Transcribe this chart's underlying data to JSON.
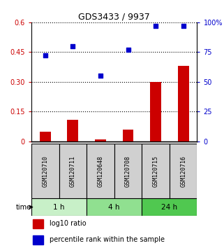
{
  "title": "GDS3433 / 9937",
  "samples": [
    "GSM120710",
    "GSM120711",
    "GSM120648",
    "GSM120708",
    "GSM120715",
    "GSM120716"
  ],
  "log10_ratio": [
    0.05,
    0.11,
    0.01,
    0.06,
    0.3,
    0.38
  ],
  "percentile_rank": [
    72,
    80,
    55,
    77,
    97,
    97
  ],
  "time_groups": [
    {
      "label": "1 h",
      "indices": [
        0,
        1
      ],
      "color": "#c8f0c8"
    },
    {
      "label": "4 h",
      "indices": [
        2,
        3
      ],
      "color": "#90e090"
    },
    {
      "label": "24 h",
      "indices": [
        4,
        5
      ],
      "color": "#50c850"
    }
  ],
  "bar_color": "#cc0000",
  "dot_color": "#0000cc",
  "left_yticks": [
    0,
    0.15,
    0.3,
    0.45,
    0.6
  ],
  "left_ylabels": [
    "0",
    "0.15",
    "0.30",
    "0.45",
    "0.6"
  ],
  "right_yticks": [
    0,
    25,
    50,
    75,
    100
  ],
  "right_ylabels": [
    "0",
    "25",
    "50",
    "75",
    "100%"
  ],
  "ylim_left": [
    0,
    0.6
  ],
  "ylim_right": [
    0,
    100
  ],
  "legend_bar_label": "log10 ratio",
  "legend_dot_label": "percentile rank within the sample",
  "time_label": "time",
  "left_axis_color": "#cc0000",
  "right_axis_color": "#0000cc",
  "background_plot": "#ffffff",
  "background_sample": "#d0d0d0"
}
